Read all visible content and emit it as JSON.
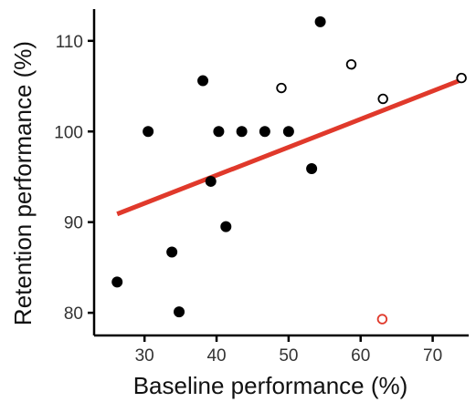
{
  "chart_data": {
    "type": "scatter",
    "title": "",
    "xlabel": "Baseline performance (%)",
    "ylabel": "Retention performance (%)",
    "xlim": [
      23,
      75
    ],
    "ylim": [
      77.5,
      113.5
    ],
    "xticks": [
      30,
      40,
      50,
      60,
      70
    ],
    "yticks": [
      80,
      90,
      100,
      110
    ],
    "grid": false,
    "series": [
      {
        "marker": "filled-circle",
        "color": "#000000",
        "points": [
          {
            "x": 26.2,
            "y": 83.4
          },
          {
            "x": 30.5,
            "y": 100.0
          },
          {
            "x": 33.8,
            "y": 86.7
          },
          {
            "x": 34.8,
            "y": 80.1
          },
          {
            "x": 38.1,
            "y": 105.6
          },
          {
            "x": 39.2,
            "y": 94.5
          },
          {
            "x": 40.3,
            "y": 100.0
          },
          {
            "x": 41.3,
            "y": 89.5
          },
          {
            "x": 43.5,
            "y": 100.0
          },
          {
            "x": 46.7,
            "y": 100.0
          },
          {
            "x": 50.0,
            "y": 100.0
          },
          {
            "x": 53.2,
            "y": 95.9
          },
          {
            "x": 54.4,
            "y": 112.1
          }
        ]
      },
      {
        "marker": "open-circle",
        "color": "#000000",
        "points": [
          {
            "x": 49.0,
            "y": 104.8
          },
          {
            "x": 58.7,
            "y": 107.4
          },
          {
            "x": 63.1,
            "y": 103.6
          },
          {
            "x": 74.0,
            "y": 105.9
          }
        ]
      },
      {
        "marker": "open-circle",
        "color": "#e0392b",
        "points": [
          {
            "x": 63.0,
            "y": 79.3
          }
        ]
      }
    ],
    "fit_line": {
      "color": "#e0392b",
      "x": [
        26.2,
        74.0
      ],
      "y": [
        90.9,
        105.7
      ]
    }
  }
}
